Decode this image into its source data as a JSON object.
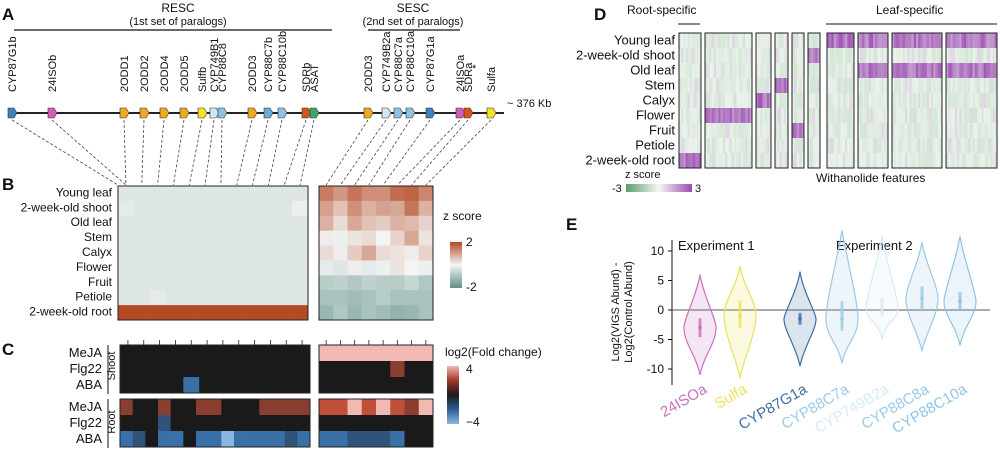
{
  "panel_labels": {
    "a": "A",
    "b": "B",
    "c": "C",
    "d": "D",
    "e": "E"
  },
  "panel_a": {
    "resc_title": "RESC",
    "resc_subtitle": "(1st set of paralogs)",
    "sesc_title": "SESC",
    "sesc_subtitle": "(2nd set of paralogs)",
    "length_label": "~ 376 Kb",
    "star": "*",
    "genes": [
      {
        "label": "CYP87G1b",
        "color": "#2e6fb0",
        "arrow": "#3d7fbf"
      },
      {
        "label": "24ISOb",
        "color": "#c64aa8",
        "arrow": "#d65db6"
      },
      {
        "label": "2ODD1",
        "color": "#e39a14",
        "arrow": "#f0a91c"
      },
      {
        "label": "2ODD2",
        "color": "#e39a14",
        "arrow": "#f0a91c"
      },
      {
        "label": "2ODD4",
        "color": "#e39a14",
        "arrow": "#f0a91c"
      },
      {
        "label": "2ODD5",
        "color": "#e39a14",
        "arrow": "#f0a91c"
      },
      {
        "label": "Sulfb",
        "color": "#e6d21c",
        "arrow": "#f2e22a"
      },
      {
        "label": "CYP749B1",
        "color": "#b9dcee",
        "arrow": "#cfe8f4"
      },
      {
        "label": "CYP88C8",
        "color": "#7fb6dd",
        "arrow": "#8fc1e3"
      },
      {
        "label": "2ODD3",
        "color": "#e39a14",
        "arrow": "#f0a91c"
      },
      {
        "label": "CYP88C7b",
        "color": "#5ca1d6",
        "arrow": "#6aa9db"
      },
      {
        "label": "CYP88C10b",
        "color": "#7fb6dd",
        "arrow": "#8fc1e3"
      },
      {
        "label": "SDRb",
        "color": "#c8501c",
        "arrow": "#d5561d"
      },
      {
        "label": "ASAT",
        "color": "#2f9e5c",
        "arrow": "#3aa866"
      },
      {
        "label": "2ODD3",
        "color": "#e39a14",
        "arrow": "#f0a91c"
      },
      {
        "label": "CYP749B2a",
        "color": "#b9dcee",
        "arrow": "#cfe8f4"
      },
      {
        "label": "CYP88C7a",
        "color": "#7fb6dd",
        "arrow": "#8fc1e3"
      },
      {
        "label": "CYP88C10a",
        "color": "#7fb6dd",
        "arrow": "#8fc1e3"
      },
      {
        "label": "CYP87G1a",
        "color": "#2e6fb0",
        "arrow": "#3d7fbf"
      },
      {
        "label": "24ISOa",
        "color": "#c64aa8",
        "arrow": "#d65db6"
      },
      {
        "label": "SDRa",
        "color": "#c8501c",
        "arrow": "#d5561d"
      },
      {
        "label": "Sulfa",
        "color": "#e6d21c",
        "arrow": "#f2e22a"
      }
    ]
  },
  "panel_b": {
    "rows": [
      "Young leaf",
      "2-week-old shoot",
      "Old leaf",
      "Stem",
      "Calyx",
      "Flower",
      "Fruit",
      "Petiole",
      "2-week-old root"
    ],
    "legend_title": "z score",
    "legend_max": "2",
    "legend_min": "-2",
    "colors": {
      "high": "#b64a25",
      "mid": "#f3f5f5",
      "low": "#5f8f85"
    },
    "left_block": [
      [
        -0.3,
        -0.3,
        -0.3,
        -0.3,
        -0.3,
        -0.3,
        -0.3,
        -0.3,
        -0.3,
        -0.3,
        -0.3,
        -0.3
      ],
      [
        -0.2,
        -0.3,
        -0.3,
        -0.3,
        -0.3,
        -0.3,
        -0.3,
        -0.3,
        -0.3,
        -0.3,
        -0.3,
        -0.1
      ],
      [
        -0.3,
        -0.3,
        -0.3,
        -0.3,
        -0.3,
        -0.3,
        -0.3,
        -0.3,
        -0.3,
        -0.3,
        -0.3,
        -0.3
      ],
      [
        -0.3,
        -0.3,
        -0.3,
        -0.3,
        -0.3,
        -0.3,
        -0.3,
        -0.3,
        -0.3,
        -0.3,
        -0.3,
        -0.3
      ],
      [
        -0.3,
        -0.3,
        -0.3,
        -0.3,
        -0.3,
        -0.3,
        -0.3,
        -0.3,
        -0.3,
        -0.3,
        -0.3,
        -0.3
      ],
      [
        -0.3,
        -0.3,
        -0.3,
        -0.3,
        -0.3,
        -0.3,
        -0.3,
        -0.3,
        -0.3,
        -0.3,
        -0.3,
        -0.3
      ],
      [
        -0.3,
        -0.3,
        -0.3,
        -0.3,
        -0.3,
        -0.3,
        -0.3,
        -0.3,
        -0.3,
        -0.3,
        -0.3,
        -0.3
      ],
      [
        -0.3,
        -0.3,
        -0.2,
        -0.3,
        -0.3,
        -0.3,
        -0.3,
        -0.3,
        -0.3,
        -0.3,
        -0.3,
        -0.3
      ],
      [
        2.2,
        2.2,
        2.2,
        2.2,
        2.2,
        2.2,
        2.2,
        2.2,
        2.2,
        2.2,
        2.2,
        2.2
      ]
    ],
    "right_block": [
      [
        1.4,
        1.1,
        1.5,
        1.2,
        1.2,
        1.6,
        1.7,
        1.3
      ],
      [
        1.0,
        0.6,
        1.2,
        0.8,
        1.0,
        0.9,
        1.5,
        0.8
      ],
      [
        0.8,
        0.3,
        0.9,
        0.6,
        0.5,
        0.8,
        0.7,
        0.4
      ],
      [
        0.1,
        -0.1,
        0.2,
        0.3,
        0.0,
        0.4,
        0.9,
        0.2
      ],
      [
        0.3,
        0.1,
        0.5,
        0.9,
        0.3,
        0.2,
        0.1,
        0.4
      ],
      [
        -0.2,
        -0.3,
        0.1,
        -0.2,
        -0.1,
        0.2,
        0.0,
        -0.1
      ],
      [
        -0.8,
        -0.7,
        -0.9,
        -0.7,
        -0.8,
        -0.8,
        -0.6,
        -0.9
      ],
      [
        -1.0,
        -1.0,
        -1.1,
        -1.0,
        -0.8,
        -1.0,
        -1.0,
        -1.0
      ],
      [
        -1.2,
        -0.9,
        -1.2,
        -1.0,
        -1.1,
        -1.3,
        -1.2,
        -1.0
      ]
    ]
  },
  "panel_c": {
    "rows": [
      "MeJA",
      "Flg22",
      "ABA"
    ],
    "shoot_label": "Shoot",
    "root_label": "Root",
    "legend_title": "log2(Fold change)",
    "legend_max": "4",
    "legend_min": "−4",
    "colors": {
      "high": "#f2b8b2",
      "mid": "#1a1a1a",
      "low": "#8ab6e0"
    },
    "shoot_left": [
      [
        0,
        0,
        0,
        0,
        0,
        0,
        0,
        0,
        0,
        0,
        0,
        0
      ],
      [
        0,
        0,
        0,
        0,
        0,
        0,
        0,
        0,
        0,
        0,
        0,
        0
      ],
      [
        0,
        0,
        0,
        0,
        -3,
        0,
        0,
        0,
        0,
        0,
        0,
        0
      ]
    ],
    "shoot_right": [
      [
        4,
        4,
        4,
        4,
        4,
        4,
        4,
        4
      ],
      [
        0,
        0,
        0,
        0,
        0,
        2,
        0,
        0
      ],
      [
        0,
        0,
        0,
        0,
        0,
        0,
        0,
        0
      ]
    ],
    "root_left": [
      [
        2,
        0,
        0,
        2,
        0,
        0,
        2,
        2,
        0,
        0,
        0,
        2,
        2,
        2,
        2
      ],
      [
        0,
        0,
        0,
        -2,
        0,
        0,
        0,
        0,
        0,
        0,
        0,
        0,
        0,
        0,
        0
      ],
      [
        -3,
        -2,
        0,
        -3,
        -3,
        0,
        -3,
        -3,
        -4,
        -3,
        -3,
        -3,
        -3,
        -2,
        -3
      ]
    ],
    "root_right": [
      [
        3,
        3,
        4,
        3,
        4,
        3,
        2,
        4
      ],
      [
        0,
        0,
        0,
        0,
        0,
        0,
        0,
        0
      ],
      [
        -3,
        -3,
        -2,
        -2,
        -2,
        -3,
        0,
        0
      ]
    ]
  },
  "panel_d": {
    "row_labels": [
      "Young leaf",
      "2-week-old shoot",
      "Old leaf",
      "Stem",
      "Calyx",
      "Flower",
      "Fruit",
      "Petiole",
      "2-week-old root"
    ],
    "root_specific": "Root-specific",
    "leaf_specific": "Leaf-specific",
    "x_title": "Withanolide features",
    "legend_title": "z score",
    "legend_min": "-3",
    "legend_max": "3",
    "colors": {
      "high": "#9a4bb0",
      "mid": "#f3f7f3",
      "low": "#5c9e6a"
    },
    "blocks": [
      {
        "hot_rows": [
          8
        ]
      },
      {
        "hot_rows": [
          5
        ]
      },
      {
        "hot_rows": [
          4
        ]
      },
      {
        "hot_rows": [
          3
        ]
      },
      {
        "hot_rows": [
          6
        ]
      },
      {
        "hot_rows": [
          1
        ]
      },
      {
        "hot_rows": [
          0
        ]
      },
      {
        "hot_rows": [
          0,
          2
        ]
      },
      {
        "hot_rows": [
          0,
          2
        ]
      },
      {
        "hot_rows": [
          0,
          2
        ]
      }
    ]
  },
  "panel_e": {
    "experiment1": "Experiment 1",
    "experiment2": "Experiment 2",
    "ylabel_line1": "Log2(VIGS Abund) -",
    "ylabel_line2": "Log2(Control Abund)",
    "chart_data": {
      "type": "violin",
      "ylim": [
        -12,
        14
      ],
      "yticks": [
        "10",
        "5",
        "0",
        "-5",
        "-10"
      ],
      "reference_line": 0,
      "series": [
        {
          "name": "24ISOa",
          "experiment": "Experiment 1",
          "color": "#c872be",
          "median": -3.0,
          "q1": -4.6,
          "q3": -1.4,
          "min": -11.0,
          "max": 6.0
        },
        {
          "name": "Sulfa",
          "experiment": "Experiment 1",
          "color": "#e8e35a",
          "median": -1.0,
          "q1": -3.0,
          "q3": 1.6,
          "min": -11.5,
          "max": 7.5
        },
        {
          "name": "CYP87G1a",
          "experiment": "Experiment 2",
          "color": "#3d6fa3",
          "median": -1.5,
          "q1": -2.5,
          "q3": -0.5,
          "min": -9.5,
          "max": 6.5
        },
        {
          "name": "CYP88C7a",
          "experiment": "Experiment 2",
          "color": "#9bc9e6",
          "median": -1.5,
          "q1": -3.5,
          "q3": 1.5,
          "min": -9.0,
          "max": 13.5
        },
        {
          "name": "CYP749B2a",
          "experiment": "Experiment 2",
          "color": "#d6ebf5",
          "median": 0.5,
          "q1": -1.0,
          "q3": 2.0,
          "min": -5.0,
          "max": 12.5
        },
        {
          "name": "CYP88C8a",
          "experiment": "Experiment 2",
          "color": "#9bc9e6",
          "median": 2.0,
          "q1": 0.0,
          "q3": 4.0,
          "min": -7.0,
          "max": 11.5
        },
        {
          "name": "CYP88C10a",
          "experiment": "Experiment 2",
          "color": "#8fc3e5",
          "median": 1.5,
          "q1": 0.0,
          "q3": 3.0,
          "min": -6.0,
          "max": 12.5
        }
      ]
    }
  }
}
